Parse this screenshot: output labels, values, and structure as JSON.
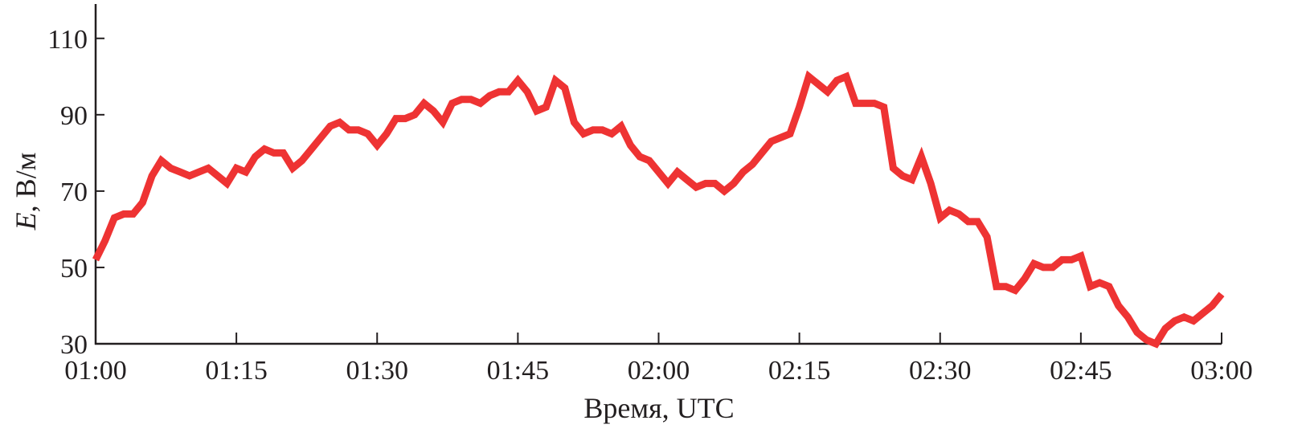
{
  "chart_data": {
    "type": "line",
    "title": "",
    "xlabel": "Время, UTC",
    "ylabel_italic": "E",
    "ylabel_rest": ", В/м",
    "xlim": [
      "01:00",
      "03:00"
    ],
    "ylim": [
      30,
      119
    ],
    "grid": false,
    "x_ticks": [
      "01:00",
      "01:15",
      "01:30",
      "01:45",
      "02:00",
      "02:15",
      "02:30",
      "02:45",
      "03:00"
    ],
    "y_ticks": [
      30,
      50,
      70,
      90,
      110
    ],
    "series": [
      {
        "color": "#EE3333",
        "x_start": "01:00",
        "x_step_minutes": 1,
        "values": [
          52,
          57,
          63,
          64,
          64,
          67,
          74,
          78,
          76,
          75,
          74,
          75,
          76,
          74,
          72,
          76,
          75,
          79,
          81,
          80,
          80,
          76,
          78,
          81,
          84,
          87,
          88,
          86,
          86,
          85,
          82,
          85,
          89,
          89,
          90,
          93,
          91,
          88,
          93,
          94,
          94,
          93,
          95,
          96,
          96,
          99,
          96,
          91,
          92,
          99,
          97,
          88,
          85,
          86,
          86,
          85,
          87,
          82,
          79,
          78,
          75,
          72,
          75,
          73,
          71,
          72,
          72,
          70,
          72,
          75,
          77,
          80,
          83,
          84,
          85,
          92,
          100,
          98,
          96,
          99,
          100,
          93,
          93,
          93,
          92,
          76,
          74,
          73,
          79,
          72,
          63,
          65,
          64,
          62,
          62,
          58,
          45,
          45,
          44,
          47,
          51,
          50,
          50,
          52,
          52,
          53,
          45,
          46,
          45,
          40,
          37,
          33,
          31,
          30,
          34,
          36,
          37,
          36,
          38,
          40,
          43
        ]
      }
    ]
  }
}
